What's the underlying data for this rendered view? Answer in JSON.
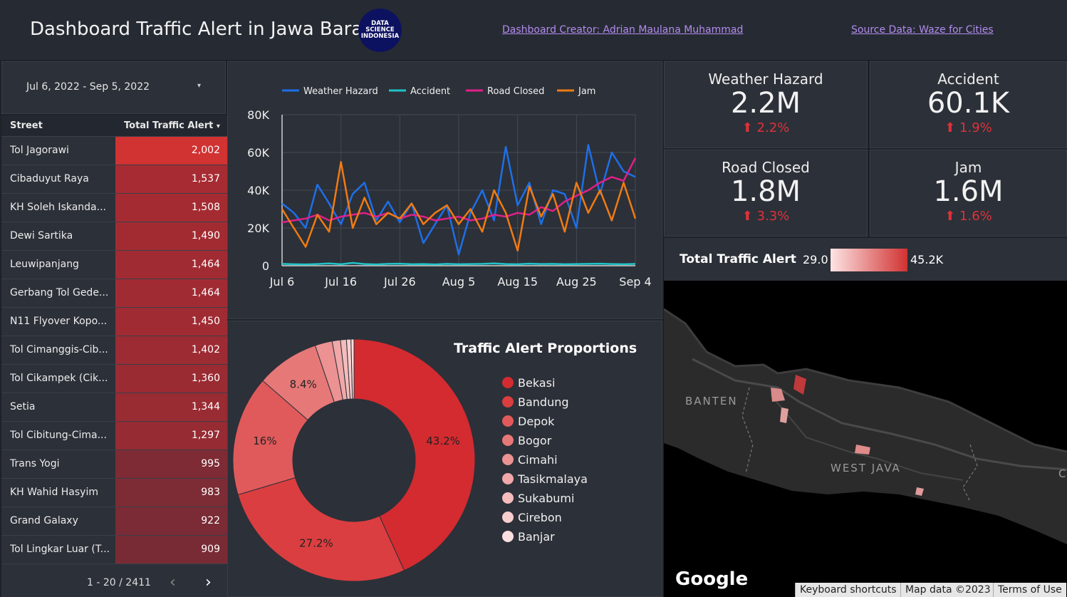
{
  "header": {
    "title": "Dashboard Traffic Alert in Jawa Barat",
    "logo_lines": [
      "DATA",
      "SCIENCE",
      "INDONESIA"
    ],
    "creator_link": "Dashboard Creator: Adrian Maulana Muhammad",
    "source_link": "Source Data: Waze for Cities"
  },
  "date_range": {
    "value": "Jul 6, 2022 - Sep 5, 2022",
    "arrow": "▾"
  },
  "table": {
    "col_street": "Street",
    "col_total": "Total Traffic Alert",
    "sort_arrow": "▾",
    "rows": [
      {
        "street": "Tol Jagorawi",
        "total": "2,002",
        "color": "#d13232"
      },
      {
        "street": "Cibaduyut Raya",
        "total": "1,537",
        "color": "#a62b32"
      },
      {
        "street": "KH Soleh Iskanda...",
        "total": "1,508",
        "color": "#a42b32"
      },
      {
        "street": "Dewi Sartika",
        "total": "1,490",
        "color": "#a22b32"
      },
      {
        "street": "Leuwipanjang",
        "total": "1,464",
        "color": "#a12b33"
      },
      {
        "street": "Gerbang Tol Gede...",
        "total": "1,464",
        "color": "#a12b33"
      },
      {
        "street": "N11 Flyover Kopo...",
        "total": "1,450",
        "color": "#a02b33"
      },
      {
        "street": "Tol Cimanggis-Cib...",
        "total": "1,402",
        "color": "#9d2b33"
      },
      {
        "street": "Tol Cikampek (Cik...",
        "total": "1,360",
        "color": "#9a2b33"
      },
      {
        "street": "Setia",
        "total": "1,344",
        "color": "#992b33"
      },
      {
        "street": "Tol Cibitung-Cima...",
        "total": "1,297",
        "color": "#962b33"
      },
      {
        "street": "Trans Yogi",
        "total": "995",
        "color": "#7e2b35"
      },
      {
        "street": "KH Wahid Hasyim",
        "total": "983",
        "color": "#7d2b35"
      },
      {
        "street": "Grand Galaxy",
        "total": "922",
        "color": "#7a2b35"
      },
      {
        "street": "Tol Lingkar Luar (T...",
        "total": "909",
        "color": "#792b35"
      }
    ],
    "pager": "1 - 20 / 2411",
    "prev": "‹",
    "next": "›"
  },
  "kpis": [
    {
      "label": "Weather Hazard",
      "value": "2.2M",
      "delta": "⬆ 2.2%"
    },
    {
      "label": "Accident",
      "value": "60.1K",
      "delta": "⬆ 1.9%"
    },
    {
      "label": "Road Closed",
      "value": "1.8M",
      "delta": "⬆ 3.3%"
    },
    {
      "label": "Jam",
      "value": "1.6M",
      "delta": "⬆ 1.6%"
    }
  ],
  "map_legend": {
    "title": "Total Traffic Alert",
    "min": "29.0",
    "max": "45.2K"
  },
  "map": {
    "labels": {
      "banten": "BANTEN",
      "westjava": "WEST JAVA",
      "edge": "C"
    },
    "google": "Google",
    "footer": [
      "Keyboard shortcuts",
      "Map data ©2023",
      "Terms of Use"
    ]
  },
  "chart_data": [
    {
      "type": "line",
      "x": [
        "Jul 6",
        "Jul 8",
        "Jul 10",
        "Jul 12",
        "Jul 14",
        "Jul 16",
        "Jul 18",
        "Jul 20",
        "Jul 22",
        "Jul 24",
        "Jul 26",
        "Jul 28",
        "Jul 30",
        "Aug 1",
        "Aug 3",
        "Aug 5",
        "Aug 7",
        "Aug 9",
        "Aug 11",
        "Aug 13",
        "Aug 15",
        "Aug 17",
        "Aug 19",
        "Aug 21",
        "Aug 23",
        "Aug 25",
        "Aug 27",
        "Aug 29",
        "Aug 31",
        "Sep 2",
        "Sep 4"
      ],
      "x_ticks": [
        "Jul 6",
        "Jul 16",
        "Jul 26",
        "Aug 5",
        "Aug 15",
        "Aug 25",
        "Sep 4"
      ],
      "y_ticks": [
        "0",
        "20K",
        "40K",
        "60K",
        "80K"
      ],
      "ylim": [
        0,
        80000
      ],
      "series": [
        {
          "name": "Weather Hazard",
          "color": "#1e6fe8",
          "values": [
            33000,
            28000,
            20000,
            43000,
            33000,
            22000,
            38000,
            44000,
            24000,
            34000,
            23000,
            33000,
            12000,
            22000,
            32000,
            6000,
            28000,
            40000,
            24000,
            63000,
            32000,
            44000,
            22000,
            40000,
            38000,
            20000,
            64000,
            38000,
            60000,
            50000,
            47000
          ]
        },
        {
          "name": "Accident",
          "color": "#1fc3c8",
          "values": [
            1000,
            800,
            700,
            900,
            1200,
            800,
            1500,
            900,
            700,
            1000,
            1100,
            800,
            900,
            700,
            1000,
            800,
            900,
            1000,
            1200,
            900,
            800,
            1100,
            900,
            1000,
            800,
            900,
            1000,
            1100,
            900,
            800,
            1000
          ]
        },
        {
          "name": "Road Closed",
          "color": "#e0208a",
          "values": [
            23000,
            24000,
            25000,
            27000,
            24000,
            26000,
            27000,
            28000,
            26000,
            28000,
            25000,
            27000,
            26000,
            24000,
            25000,
            26000,
            24000,
            25000,
            27000,
            26000,
            28000,
            27000,
            31000,
            29000,
            34000,
            37000,
            40000,
            44000,
            47000,
            45000,
            57000
          ]
        },
        {
          "name": "Jam",
          "color": "#f07b12",
          "values": [
            30000,
            20000,
            10000,
            27000,
            18000,
            55000,
            20000,
            36000,
            22000,
            28000,
            25000,
            33000,
            22000,
            28000,
            32000,
            22000,
            30000,
            18000,
            40000,
            28000,
            8000,
            42000,
            26000,
            38000,
            18000,
            44000,
            28000,
            40000,
            24000,
            44000,
            25000
          ]
        }
      ]
    },
    {
      "type": "pie",
      "title": "Traffic Alert Proportions",
      "categories": [
        "Bekasi",
        "Bandung",
        "Depok",
        "Bogor",
        "Cimahi",
        "Tasikmalaya",
        "Sukabumi",
        "Cirebon",
        "Banjar"
      ],
      "values": [
        43.2,
        27.2,
        16,
        8.4,
        2.3,
        1.1,
        0.8,
        0.6,
        0.4
      ],
      "labels": [
        "43.2%",
        "27.2%",
        "16%",
        "8.4%",
        "",
        "",
        "",
        "",
        ""
      ],
      "colors": [
        "#d32b30",
        "#db3e40",
        "#e05a5b",
        "#e67878",
        "#ec9292",
        "#f0a8a8",
        "#f4bcbc",
        "#f7cece",
        "#fadfdf"
      ]
    }
  ]
}
